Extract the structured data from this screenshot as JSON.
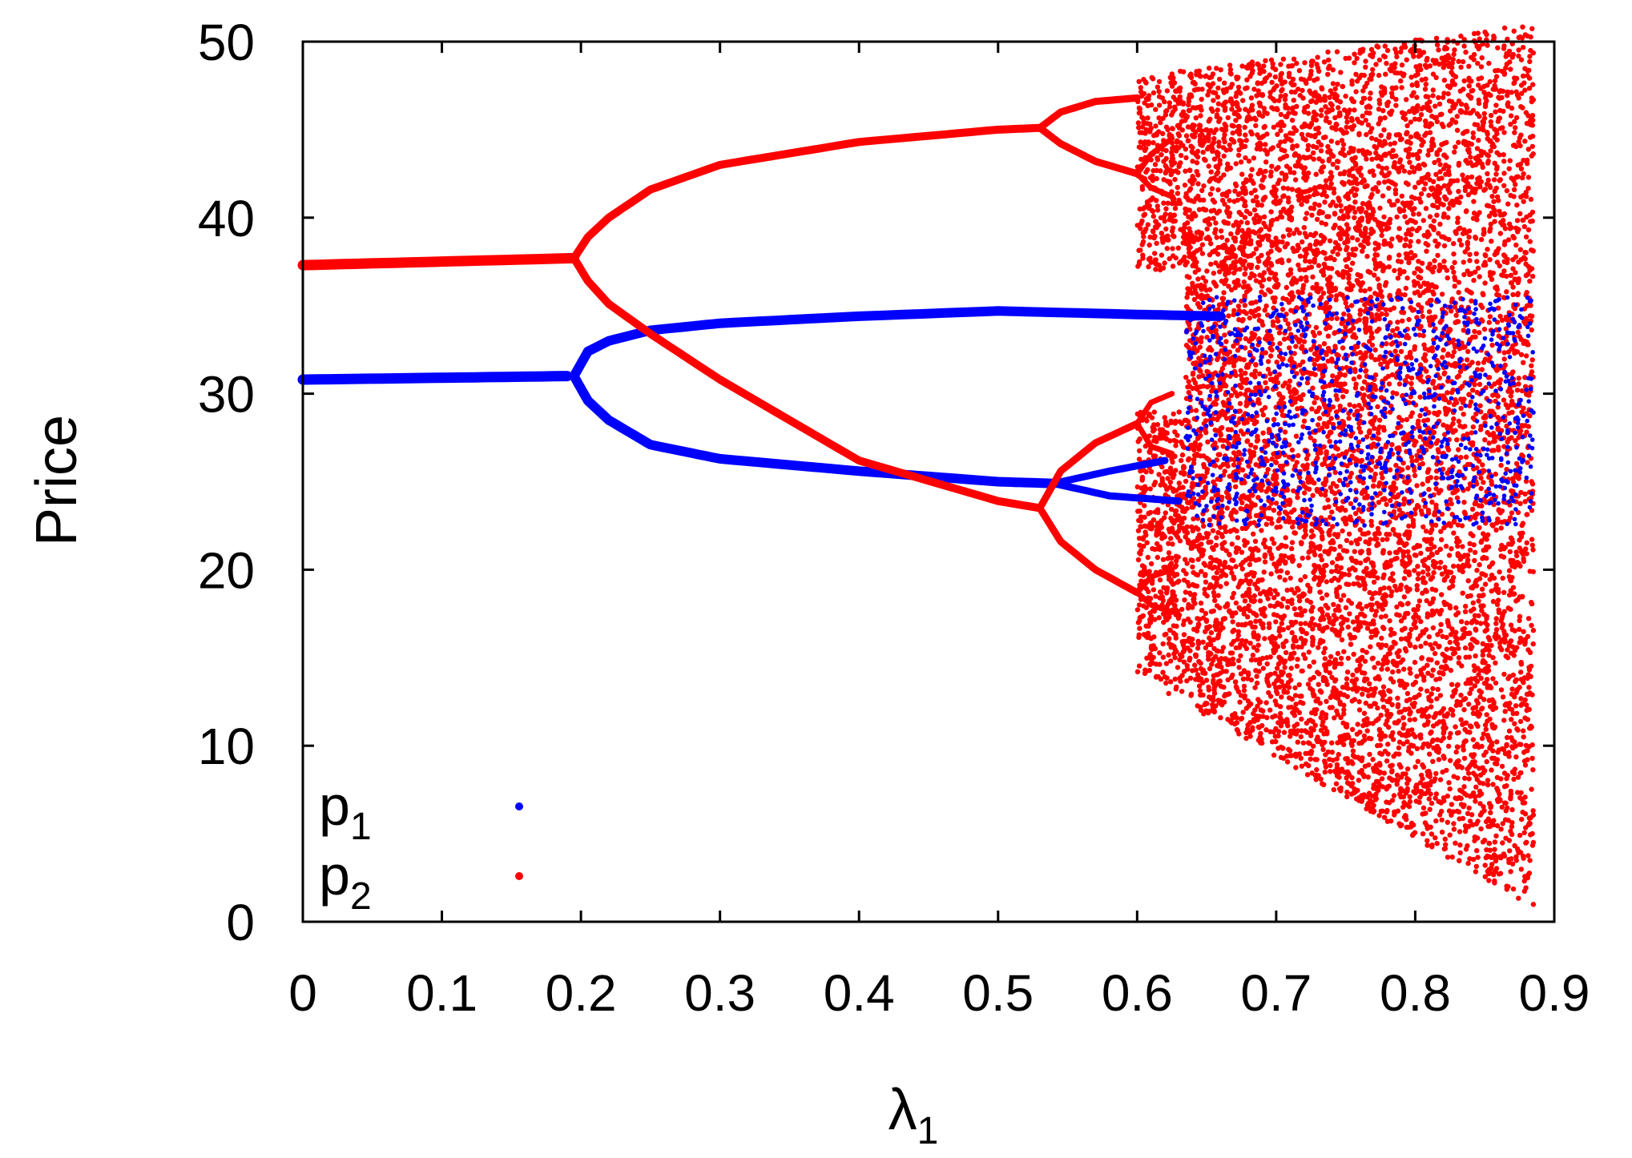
{
  "chart_data": {
    "type": "scatter",
    "title": "",
    "xlabel": "λ",
    "xlabel_subscript": "1",
    "ylabel": "Price",
    "xlim": [
      0,
      0.9
    ],
    "ylim": [
      0,
      50
    ],
    "x_ticks": [
      "0",
      "0.1",
      "0.2",
      "0.3",
      "0.4",
      "0.5",
      "0.6",
      "0.7",
      "0.8",
      "0.9"
    ],
    "y_ticks": [
      "0",
      "10",
      "20",
      "30",
      "40",
      "50"
    ],
    "grid": false,
    "legend_position": "bottom-left",
    "series": [
      {
        "name": "p",
        "name_subscript": "1",
        "color": "#0000ff",
        "x": [
          0,
          0.1,
          0.19,
          0.2,
          0.25,
          0.3,
          0.4,
          0.5,
          0.53,
          0.6,
          0.65,
          0.2,
          0.25,
          0.3,
          0.4,
          0.5,
          0.53,
          0.6,
          0.65
        ],
        "y": [
          30.8,
          30.9,
          31.0,
          33.0,
          33.6,
          34.0,
          34.4,
          34.7,
          34.7,
          34.5,
          34.4,
          28.8,
          26.9,
          26.3,
          25.6,
          25.0,
          24.9,
          24.5,
          24.3
        ]
      },
      {
        "name": "p",
        "name_subscript": "2",
        "color": "#ff0000",
        "x": [
          0,
          0.1,
          0.195,
          0.2,
          0.25,
          0.3,
          0.4,
          0.5,
          0.53,
          0.55,
          0.6,
          0.55,
          0.6,
          0.2,
          0.25,
          0.3,
          0.4,
          0.5,
          0.53,
          0.55,
          0.6,
          0.55,
          0.6
        ],
        "y": [
          37.3,
          37.5,
          37.7,
          39.2,
          41.8,
          43.0,
          44.3,
          45.0,
          45.1,
          46.3,
          46.8,
          43.9,
          42.5,
          36.2,
          33.3,
          30.8,
          26.2,
          23.9,
          23.5,
          26.9,
          28.3,
          20.2,
          18.7
        ]
      }
    ],
    "chaotic_region": {
      "x_start": 0.6,
      "x_end": 0.885,
      "p1_band": [
        22.5,
        35.5
      ],
      "p2_band_at_start": [
        14.0,
        48.0
      ],
      "p2_band_at_end": [
        0.8,
        51.0
      ]
    }
  }
}
